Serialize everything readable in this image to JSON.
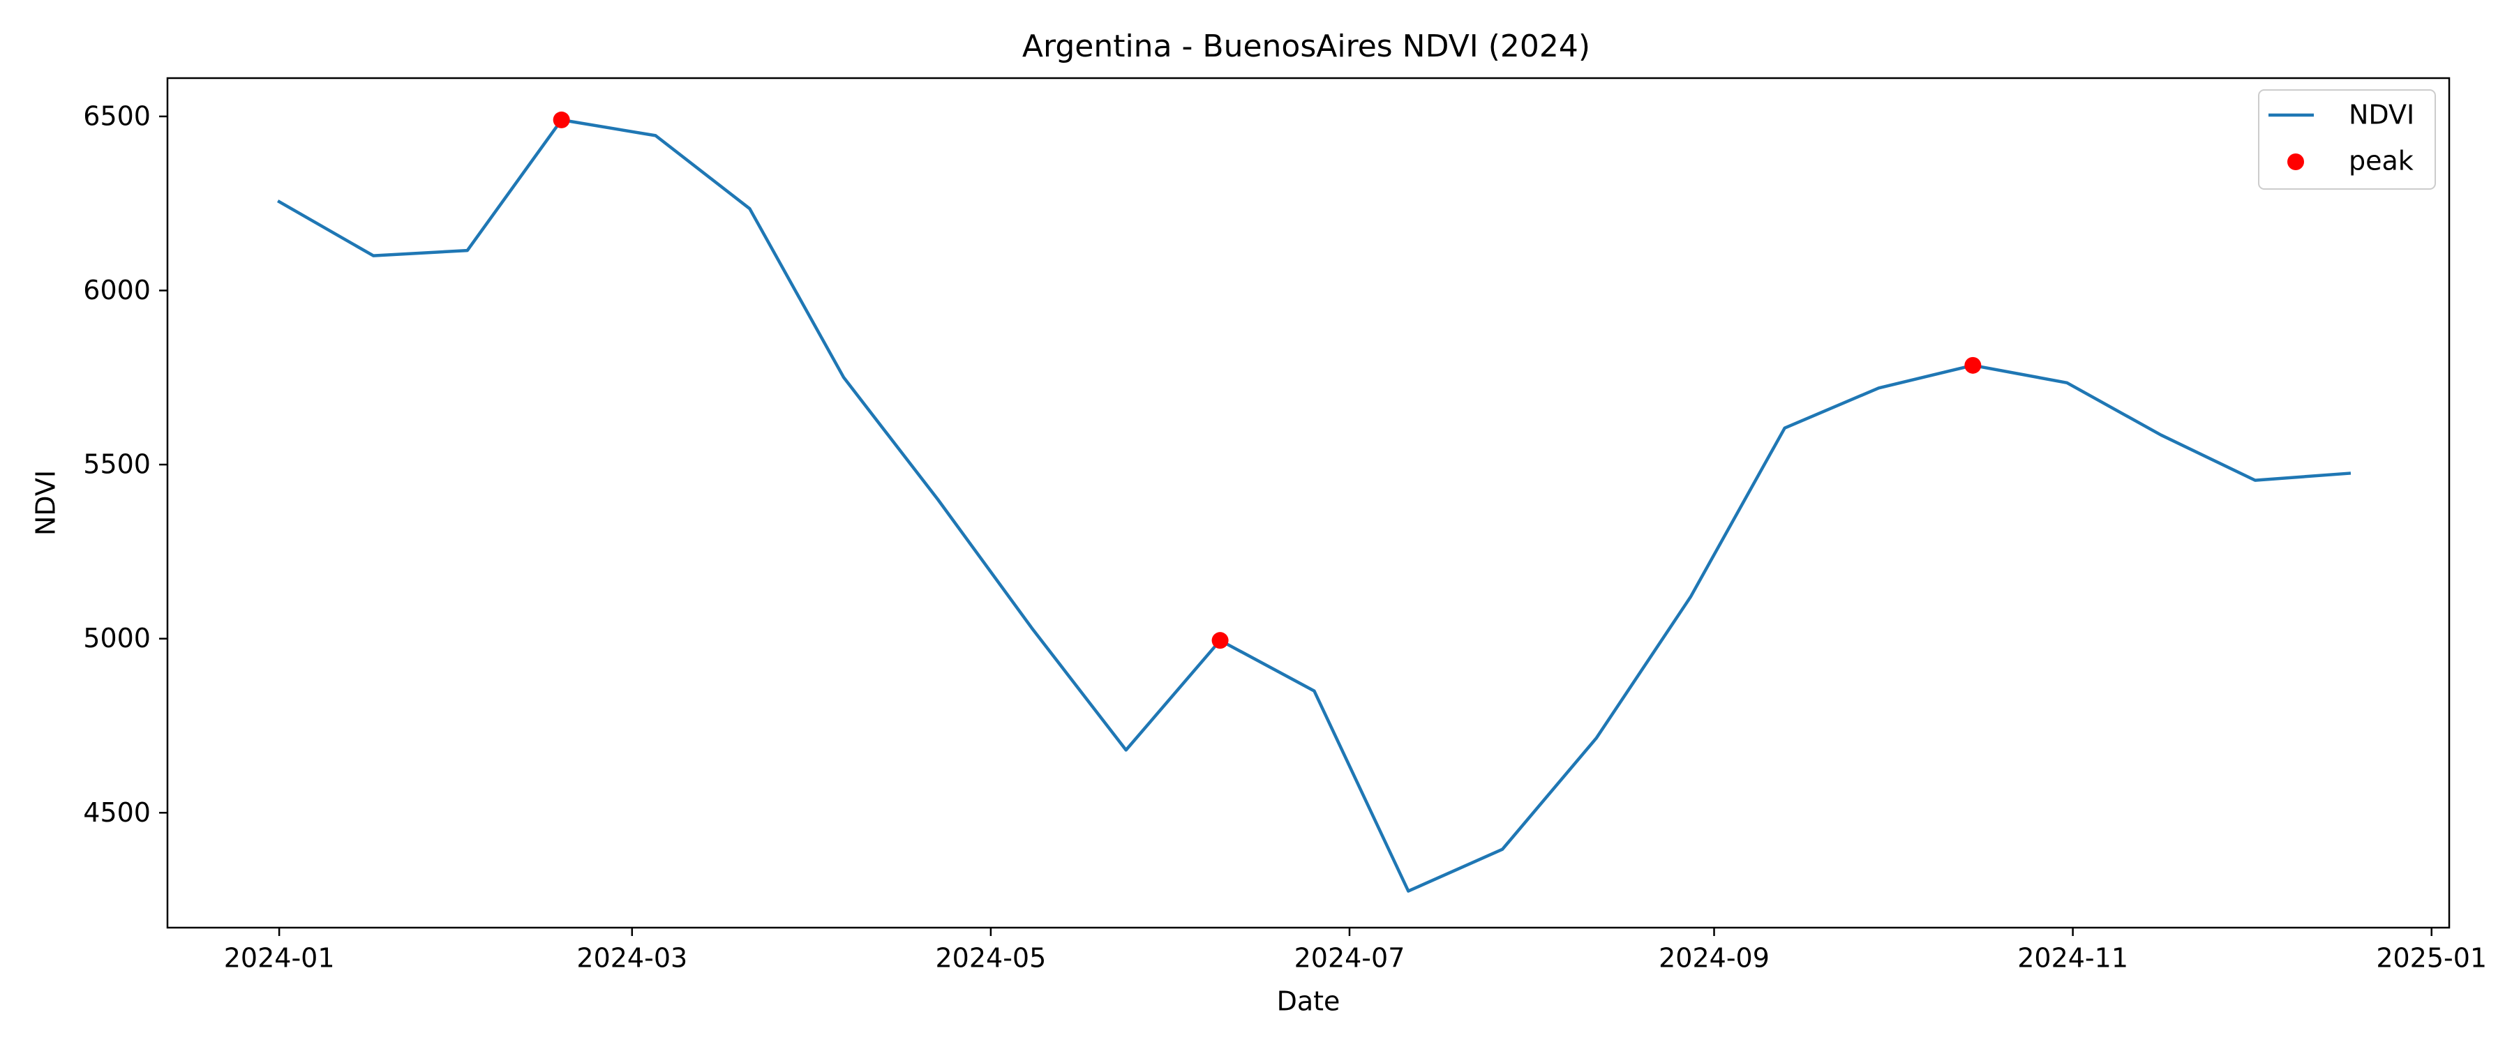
{
  "chart_data": {
    "type": "line",
    "title": "Argentina - BuenosAires NDVI (2024)",
    "xlabel": "Date",
    "ylabel": "NDVI",
    "x_ticks": [
      "2024-01",
      "2024-03",
      "2024-05",
      "2024-07",
      "2024-09",
      "2024-11",
      "2025-01"
    ],
    "y_ticks": [
      4500,
      5000,
      5500,
      6000,
      6500
    ],
    "xlim": [
      "2023-12-13",
      "2025-01-04"
    ],
    "ylim": [
      4170,
      6610
    ],
    "grid": false,
    "legend_position": "top-right",
    "series": [
      {
        "name": "NDVI",
        "color": "#1f77b4",
        "x": [
          "2024-01-01",
          "2024-01-17",
          "2024-02-02",
          "2024-02-18",
          "2024-03-05",
          "2024-03-21",
          "2024-04-06",
          "2024-04-22",
          "2024-05-08",
          "2024-05-24",
          "2024-06-09",
          "2024-06-25",
          "2024-07-11",
          "2024-07-27",
          "2024-08-12",
          "2024-08-28",
          "2024-09-13",
          "2024-09-29",
          "2024-10-15",
          "2024-10-31",
          "2024-11-16",
          "2024-12-02",
          "2024-12-18"
        ],
        "values": [
          6255,
          6100,
          6115,
          6490,
          6445,
          6235,
          5750,
          5400,
          5030,
          4680,
          4995,
          4850,
          4275,
          4395,
          4715,
          5120,
          5605,
          5720,
          5785,
          5735,
          5585,
          5455,
          5475
        ]
      },
      {
        "name": "peak",
        "color": "#ff0000",
        "x": [
          "2024-02-18",
          "2024-06-09",
          "2024-10-15"
        ],
        "values": [
          6490,
          4995,
          5785
        ]
      }
    ]
  }
}
